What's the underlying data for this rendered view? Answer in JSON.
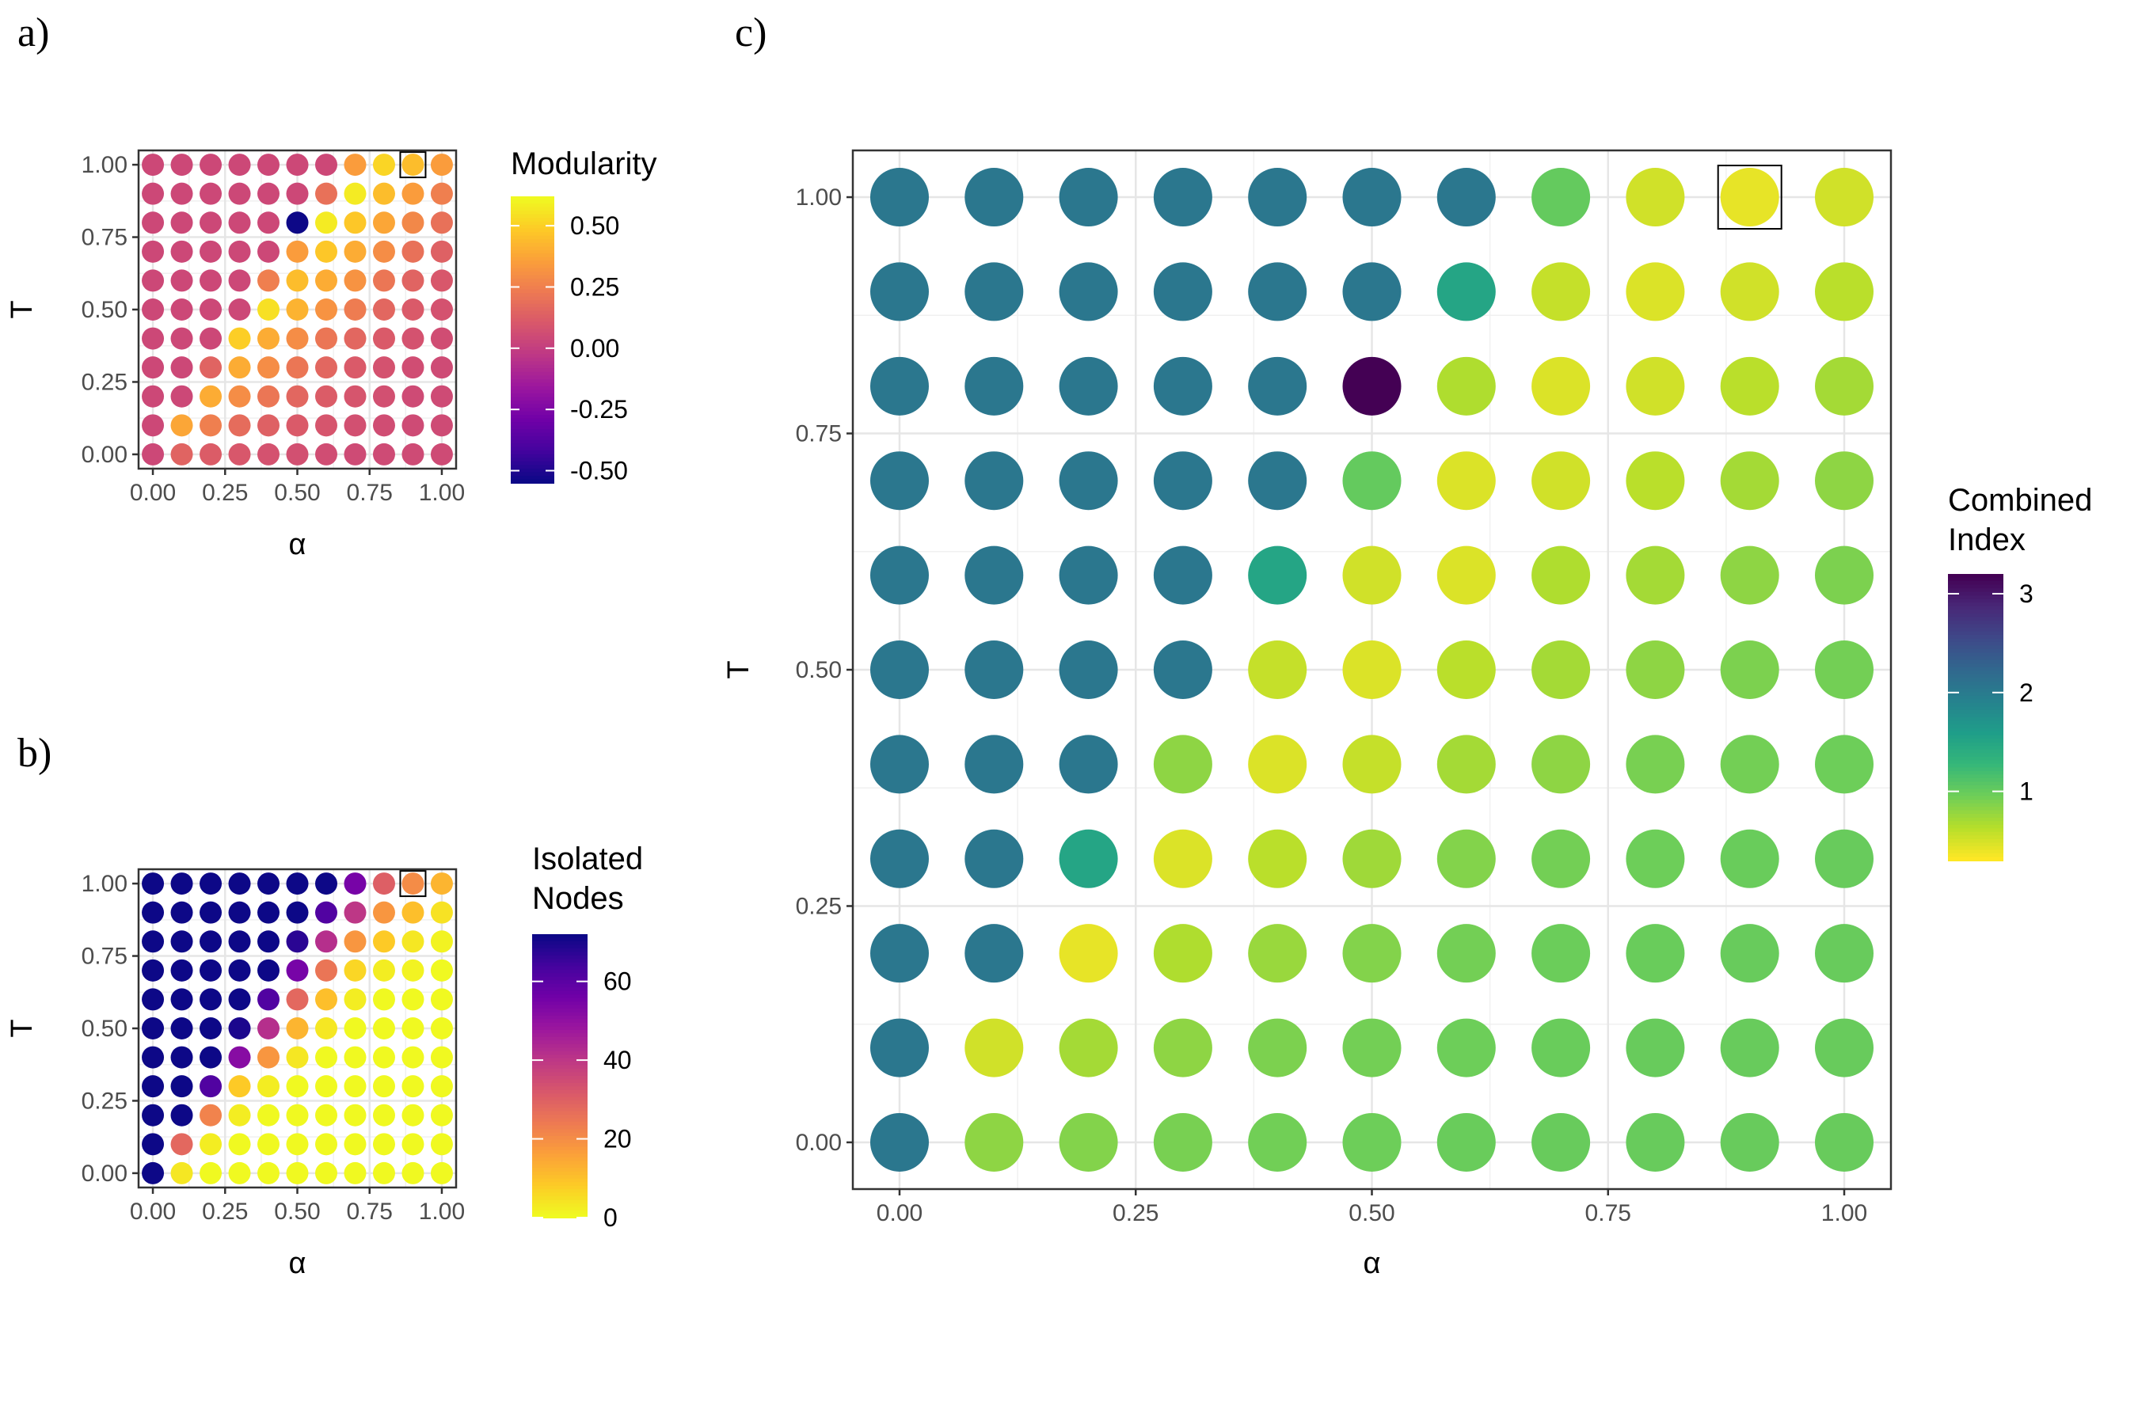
{
  "panel_labels": [
    "a)",
    "b)",
    "c)"
  ],
  "chart_data": [
    {
      "type": "heatmap",
      "panel": "a)",
      "marker": "circle",
      "xlabel": "α",
      "ylabel": "T",
      "x_values": [
        0.0,
        0.1,
        0.2,
        0.3,
        0.4,
        0.5,
        0.6,
        0.7,
        0.8,
        0.9,
        1.0
      ],
      "y_values": [
        0.0,
        0.1,
        0.2,
        0.3,
        0.4,
        0.5,
        0.6,
        0.7,
        0.8,
        0.9,
        1.0
      ],
      "xlim": [
        0,
        1
      ],
      "ylim": [
        0,
        1
      ],
      "x_ticks": [
        "0.00",
        "0.25",
        "0.50",
        "0.75",
        "1.00"
      ],
      "y_ticks": [
        "0.00",
        "0.25",
        "0.50",
        "0.75",
        "1.00"
      ],
      "grid": true,
      "legend_title": "Modularity",
      "legend_position": "right",
      "colorscale": "plasma",
      "color_range": [
        -0.55,
        0.62
      ],
      "legend_ticks": [
        "0.50",
        "0.25",
        "0.00",
        "-0.25",
        "-0.50"
      ],
      "legend_tick_values": [
        0.5,
        0.25,
        0.0,
        -0.25,
        -0.5
      ],
      "highlight": {
        "x": 0.9,
        "y": 1.0
      },
      "values_rows_from_y1_to_y0": [
        [
          0.04,
          0.04,
          0.04,
          0.04,
          0.04,
          0.04,
          0.04,
          0.35,
          0.52,
          0.45,
          0.35
        ],
        [
          0.04,
          0.04,
          0.04,
          0.04,
          0.04,
          0.04,
          0.2,
          0.58,
          0.45,
          0.35,
          0.25
        ],
        [
          0.04,
          0.04,
          0.04,
          0.04,
          0.04,
          -0.55,
          0.58,
          0.48,
          0.38,
          0.28,
          0.2
        ],
        [
          0.04,
          0.04,
          0.04,
          0.04,
          0.04,
          0.35,
          0.48,
          0.4,
          0.3,
          0.2,
          0.14
        ],
        [
          0.04,
          0.04,
          0.04,
          0.04,
          0.25,
          0.45,
          0.4,
          0.32,
          0.22,
          0.15,
          0.1
        ],
        [
          0.04,
          0.04,
          0.04,
          0.04,
          0.55,
          0.42,
          0.32,
          0.24,
          0.16,
          0.11,
          0.08
        ],
        [
          0.04,
          0.04,
          0.04,
          0.5,
          0.4,
          0.3,
          0.22,
          0.16,
          0.11,
          0.08,
          0.06
        ],
        [
          0.04,
          0.04,
          0.15,
          0.4,
          0.3,
          0.22,
          0.16,
          0.11,
          0.08,
          0.06,
          0.05
        ],
        [
          0.04,
          0.04,
          0.4,
          0.3,
          0.22,
          0.16,
          0.12,
          0.09,
          0.07,
          0.05,
          0.05
        ],
        [
          0.04,
          0.38,
          0.25,
          0.18,
          0.14,
          0.11,
          0.09,
          0.07,
          0.06,
          0.05,
          0.05
        ],
        [
          0.04,
          0.15,
          0.12,
          0.1,
          0.08,
          0.07,
          0.06,
          0.05,
          0.05,
          0.05,
          0.05
        ]
      ]
    },
    {
      "type": "heatmap",
      "panel": "b)",
      "marker": "circle",
      "xlabel": "α",
      "ylabel": "T",
      "x_values": [
        0.0,
        0.1,
        0.2,
        0.3,
        0.4,
        0.5,
        0.6,
        0.7,
        0.8,
        0.9,
        1.0
      ],
      "y_values": [
        0.0,
        0.1,
        0.2,
        0.3,
        0.4,
        0.5,
        0.6,
        0.7,
        0.8,
        0.9,
        1.0
      ],
      "xlim": [
        0,
        1
      ],
      "ylim": [
        0,
        1
      ],
      "x_ticks": [
        "0.00",
        "0.25",
        "0.50",
        "0.75",
        "1.00"
      ],
      "y_ticks": [
        "0.00",
        "0.25",
        "0.50",
        "0.75",
        "1.00"
      ],
      "grid": true,
      "legend_title": "Isolated Nodes",
      "legend_title_lines": [
        "Isolated",
        "Nodes"
      ],
      "legend_position": "right",
      "colorscale": "plasma_reversed",
      "color_range": [
        0,
        72
      ],
      "legend_ticks": [
        "60",
        "40",
        "20",
        "0"
      ],
      "legend_tick_values": [
        60,
        40,
        20,
        0
      ],
      "highlight": {
        "x": 0.9,
        "y": 1.0
      },
      "values_rows_from_y1_to_y0": [
        [
          72,
          72,
          72,
          72,
          72,
          72,
          72,
          55,
          30,
          20,
          12
        ],
        [
          72,
          72,
          72,
          72,
          72,
          72,
          62,
          40,
          18,
          10,
          4
        ],
        [
          72,
          72,
          72,
          72,
          72,
          68,
          42,
          18,
          8,
          3,
          1
        ],
        [
          72,
          72,
          72,
          72,
          72,
          55,
          25,
          6,
          2,
          1,
          0
        ],
        [
          72,
          72,
          72,
          72,
          62,
          28,
          10,
          2,
          0,
          0,
          0
        ],
        [
          72,
          72,
          72,
          70,
          42,
          12,
          3,
          0,
          0,
          0,
          0
        ],
        [
          72,
          72,
          72,
          52,
          18,
          3,
          0,
          0,
          0,
          0,
          0
        ],
        [
          72,
          72,
          62,
          8,
          2,
          0,
          0,
          0,
          0,
          0,
          0
        ],
        [
          72,
          72,
          22,
          2,
          0,
          0,
          0,
          0,
          0,
          0,
          0
        ],
        [
          72,
          28,
          2,
          0,
          0,
          0,
          0,
          0,
          0,
          0,
          0
        ],
        [
          72,
          3,
          0,
          0,
          0,
          0,
          0,
          0,
          0,
          0,
          0
        ]
      ]
    },
    {
      "type": "heatmap",
      "panel": "c)",
      "marker": "circle",
      "xlabel": "α",
      "ylabel": "T",
      "x_values": [
        0.0,
        0.1,
        0.2,
        0.3,
        0.4,
        0.5,
        0.6,
        0.7,
        0.8,
        0.9,
        1.0
      ],
      "y_values": [
        0.0,
        0.1,
        0.2,
        0.3,
        0.4,
        0.5,
        0.6,
        0.7,
        0.8,
        0.9,
        1.0
      ],
      "xlim": [
        0,
        1
      ],
      "ylim": [
        0,
        1
      ],
      "x_ticks": [
        "0.00",
        "0.25",
        "0.50",
        "0.75",
        "1.00"
      ],
      "y_ticks": [
        "0.00",
        "0.25",
        "0.50",
        "0.75",
        "1.00"
      ],
      "grid": true,
      "legend_title": "Combined Index",
      "legend_title_lines": [
        "Combined",
        "Index"
      ],
      "legend_position": "right",
      "colorscale": "viridis_reversed",
      "color_range": [
        0.3,
        3.2
      ],
      "legend_ticks": [
        "3",
        "2",
        "1"
      ],
      "legend_tick_values": [
        3,
        2,
        1
      ],
      "highlight": {
        "x": 0.9,
        "y": 1.0
      },
      "values_rows_from_y1_to_y0": [
        [
          2.05,
          2.05,
          2.05,
          2.05,
          2.05,
          2.05,
          2.05,
          1.0,
          0.5,
          0.4,
          0.5
        ],
        [
          2.05,
          2.05,
          2.05,
          2.05,
          2.05,
          2.05,
          1.5,
          0.55,
          0.45,
          0.5,
          0.6
        ],
        [
          2.05,
          2.05,
          2.05,
          2.05,
          2.05,
          3.2,
          0.65,
          0.45,
          0.5,
          0.6,
          0.7
        ],
        [
          2.05,
          2.05,
          2.05,
          2.05,
          2.05,
          1.0,
          0.45,
          0.5,
          0.6,
          0.7,
          0.8
        ],
        [
          2.05,
          2.05,
          2.05,
          2.05,
          1.5,
          0.5,
          0.45,
          0.65,
          0.7,
          0.8,
          0.88
        ],
        [
          2.05,
          2.05,
          2.05,
          2.05,
          0.55,
          0.45,
          0.6,
          0.7,
          0.8,
          0.88,
          0.92
        ],
        [
          2.05,
          2.05,
          2.05,
          0.8,
          0.45,
          0.55,
          0.7,
          0.8,
          0.9,
          0.92,
          0.95
        ],
        [
          2.05,
          2.05,
          1.5,
          0.45,
          0.6,
          0.72,
          0.85,
          0.92,
          0.95,
          0.97,
          0.98
        ],
        [
          2.05,
          2.05,
          0.4,
          0.65,
          0.75,
          0.85,
          0.92,
          0.96,
          0.97,
          0.98,
          0.98
        ],
        [
          2.05,
          0.5,
          0.7,
          0.8,
          0.88,
          0.92,
          0.95,
          0.97,
          0.98,
          0.98,
          0.98
        ],
        [
          2.05,
          0.8,
          0.85,
          0.9,
          0.93,
          0.95,
          0.97,
          0.98,
          0.98,
          0.98,
          0.98
        ]
      ]
    }
  ]
}
